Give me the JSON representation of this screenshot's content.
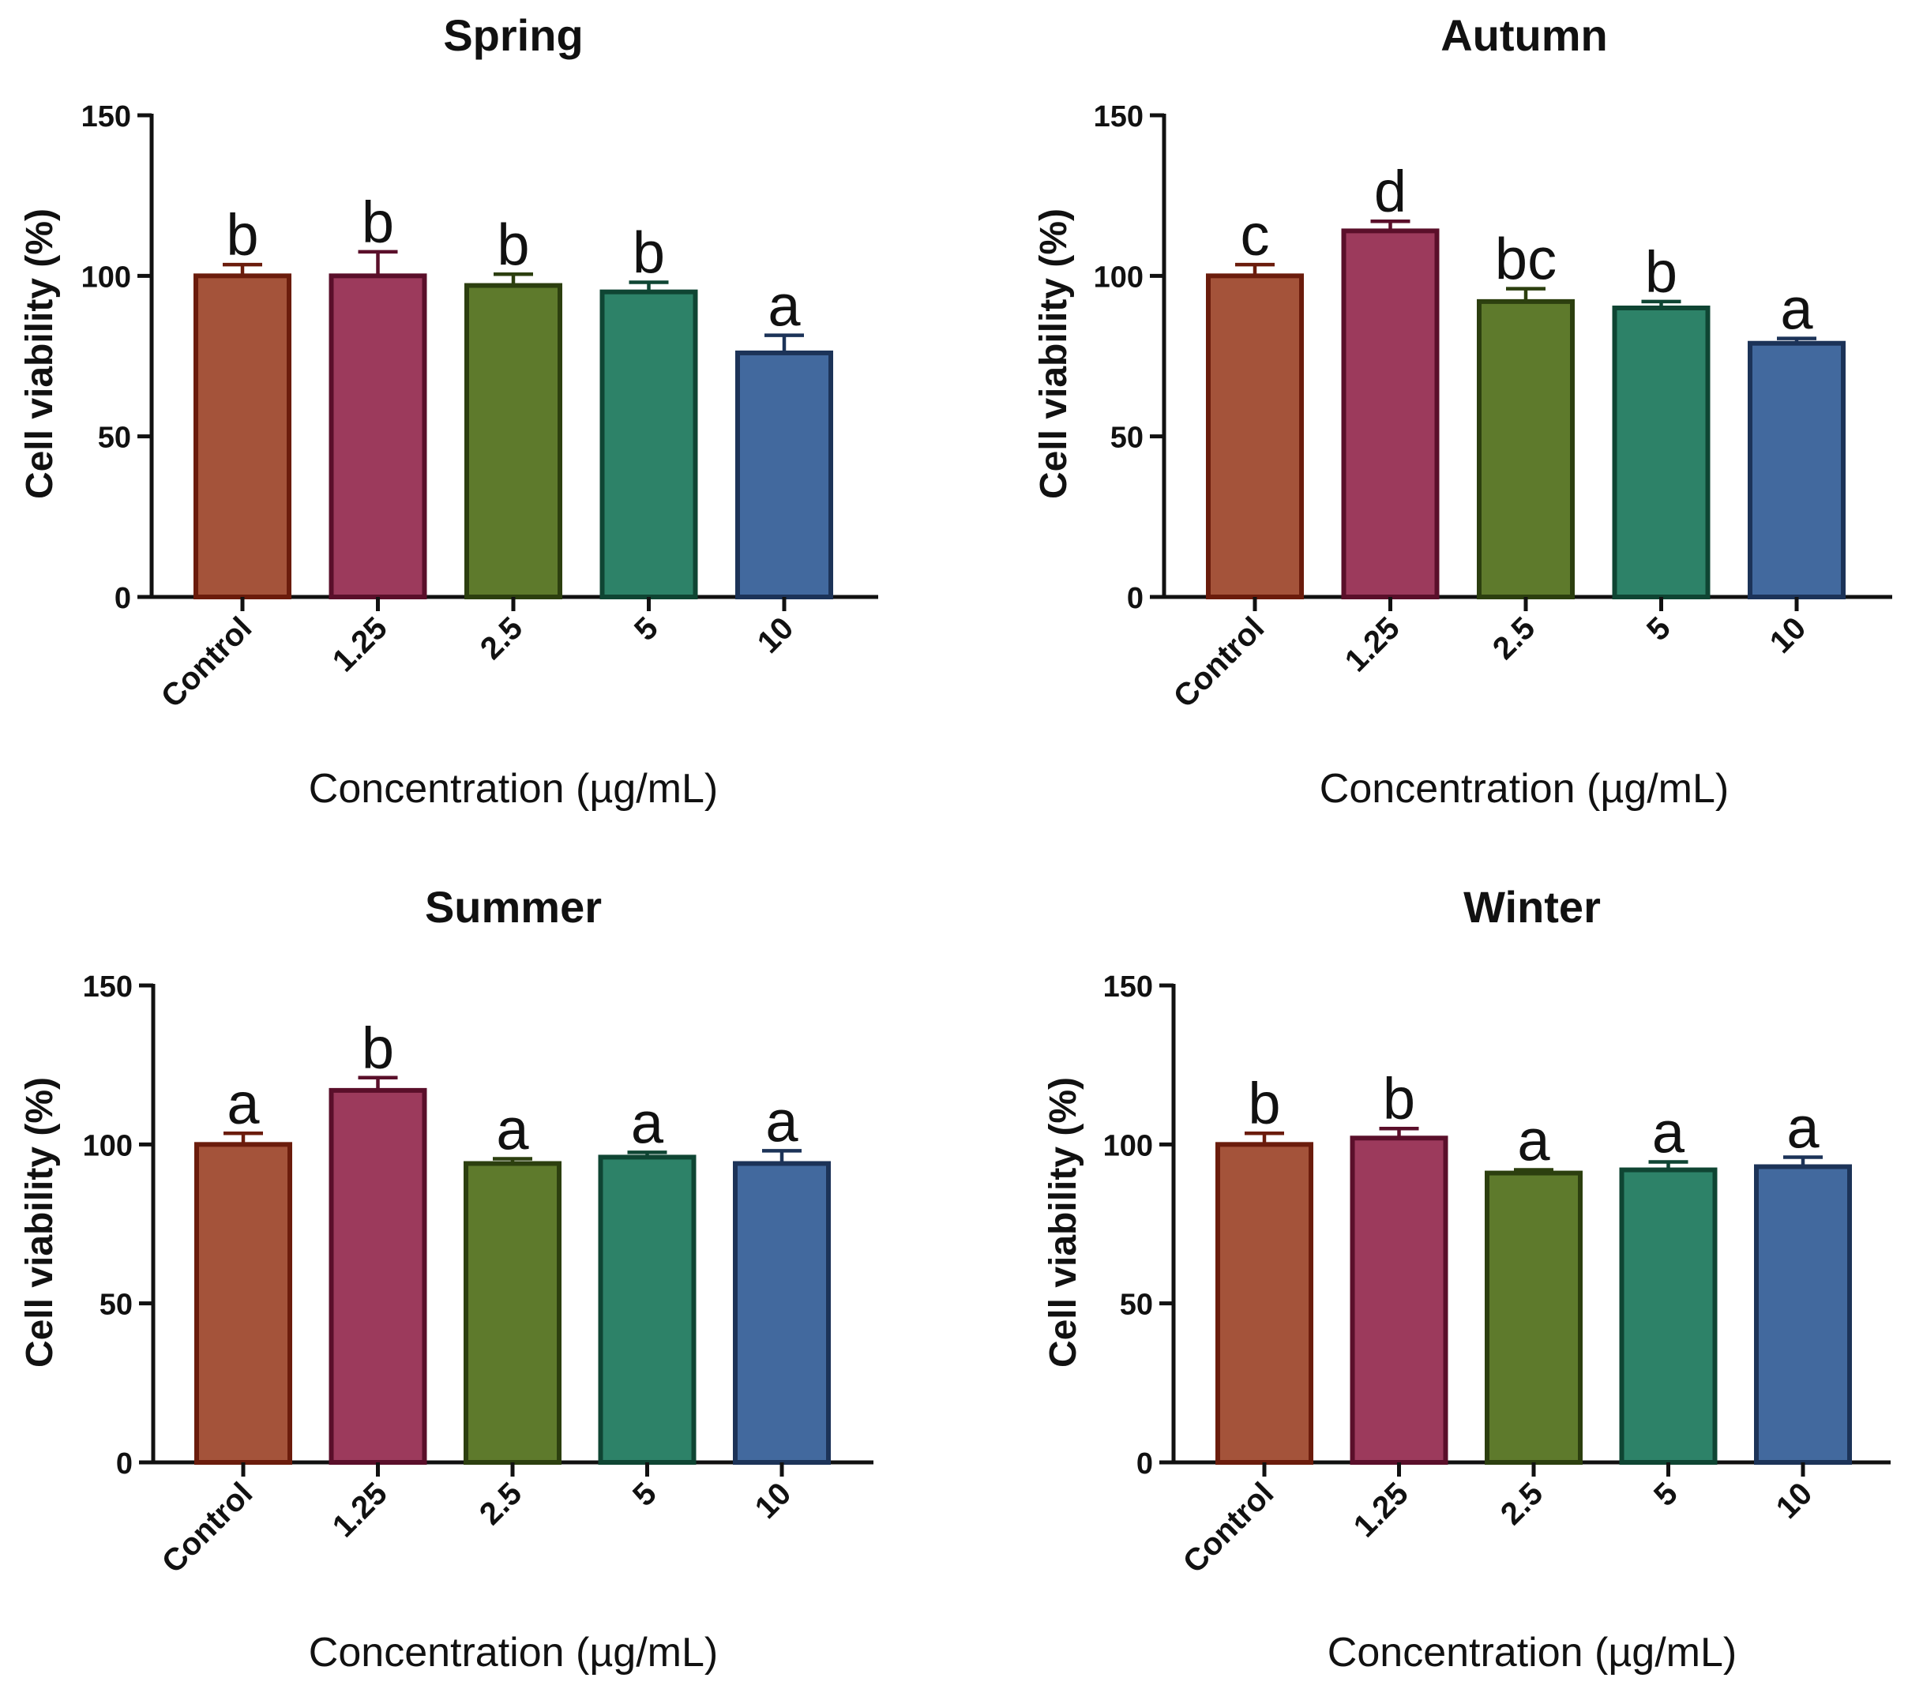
{
  "colors": {
    "fills": [
      "#a4533a",
      "#9c3a5c",
      "#5e7a2c",
      "#2d8268",
      "#42699e"
    ],
    "strokes": [
      "#6b1c0c",
      "#5a0f2a",
      "#2c3f0f",
      "#0f4533",
      "#1c3358"
    ]
  },
  "chart_data": [
    {
      "type": "bar",
      "title": "Spring",
      "xlabel": "Concentration (µg/mL)",
      "ylabel": "Cell viability (%)",
      "ylim": [
        0,
        150
      ],
      "yticks": [
        "0",
        "50",
        "100",
        "150"
      ],
      "categories": [
        "Control",
        "1.25",
        "2.5",
        "5",
        "10"
      ],
      "values": [
        100,
        100,
        97,
        95,
        76
      ],
      "errors": [
        3.5,
        7.5,
        3.5,
        3,
        5.5
      ],
      "annotations": [
        "b",
        "b",
        "b",
        "b",
        "a"
      ]
    },
    {
      "type": "bar",
      "title": "Autumn",
      "xlabel": "Concentration (µg/mL)",
      "ylabel": "Cell viability (%)",
      "ylim": [
        0,
        150
      ],
      "yticks": [
        "0",
        "50",
        "100",
        "150"
      ],
      "categories": [
        "Control",
        "1.25",
        "2.5",
        "5",
        "10"
      ],
      "values": [
        100,
        114,
        92,
        90,
        79
      ],
      "errors": [
        3.5,
        3,
        4,
        2,
        1.5
      ],
      "annotations": [
        "c",
        "d",
        "bc",
        "b",
        "a"
      ]
    },
    {
      "type": "bar",
      "title": "Summer",
      "xlabel": "Concentration (µg/mL)",
      "ylabel": "Cell viability (%)",
      "ylim": [
        0,
        150
      ],
      "yticks": [
        "0",
        "50",
        "100",
        "150"
      ],
      "categories": [
        "Control",
        "1.25",
        "2.5",
        "5",
        "10"
      ],
      "values": [
        100,
        117,
        94,
        96,
        94
      ],
      "errors": [
        3.5,
        4,
        1.5,
        1.5,
        4
      ],
      "annotations": [
        "a",
        "b",
        "a",
        "a",
        "a"
      ]
    },
    {
      "type": "bar",
      "title": "Winter",
      "xlabel": "Concentration (µg/mL)",
      "ylabel": "Cell viability (%)",
      "ylim": [
        0,
        150
      ],
      "yticks": [
        "0",
        "50",
        "100",
        "150"
      ],
      "categories": [
        "Control",
        "1.25",
        "2.5",
        "5",
        "10"
      ],
      "values": [
        100,
        102,
        91,
        92,
        93
      ],
      "errors": [
        3.5,
        3,
        1,
        2.5,
        3
      ],
      "annotations": [
        "b",
        "b",
        "a",
        "a",
        "a"
      ]
    }
  ]
}
